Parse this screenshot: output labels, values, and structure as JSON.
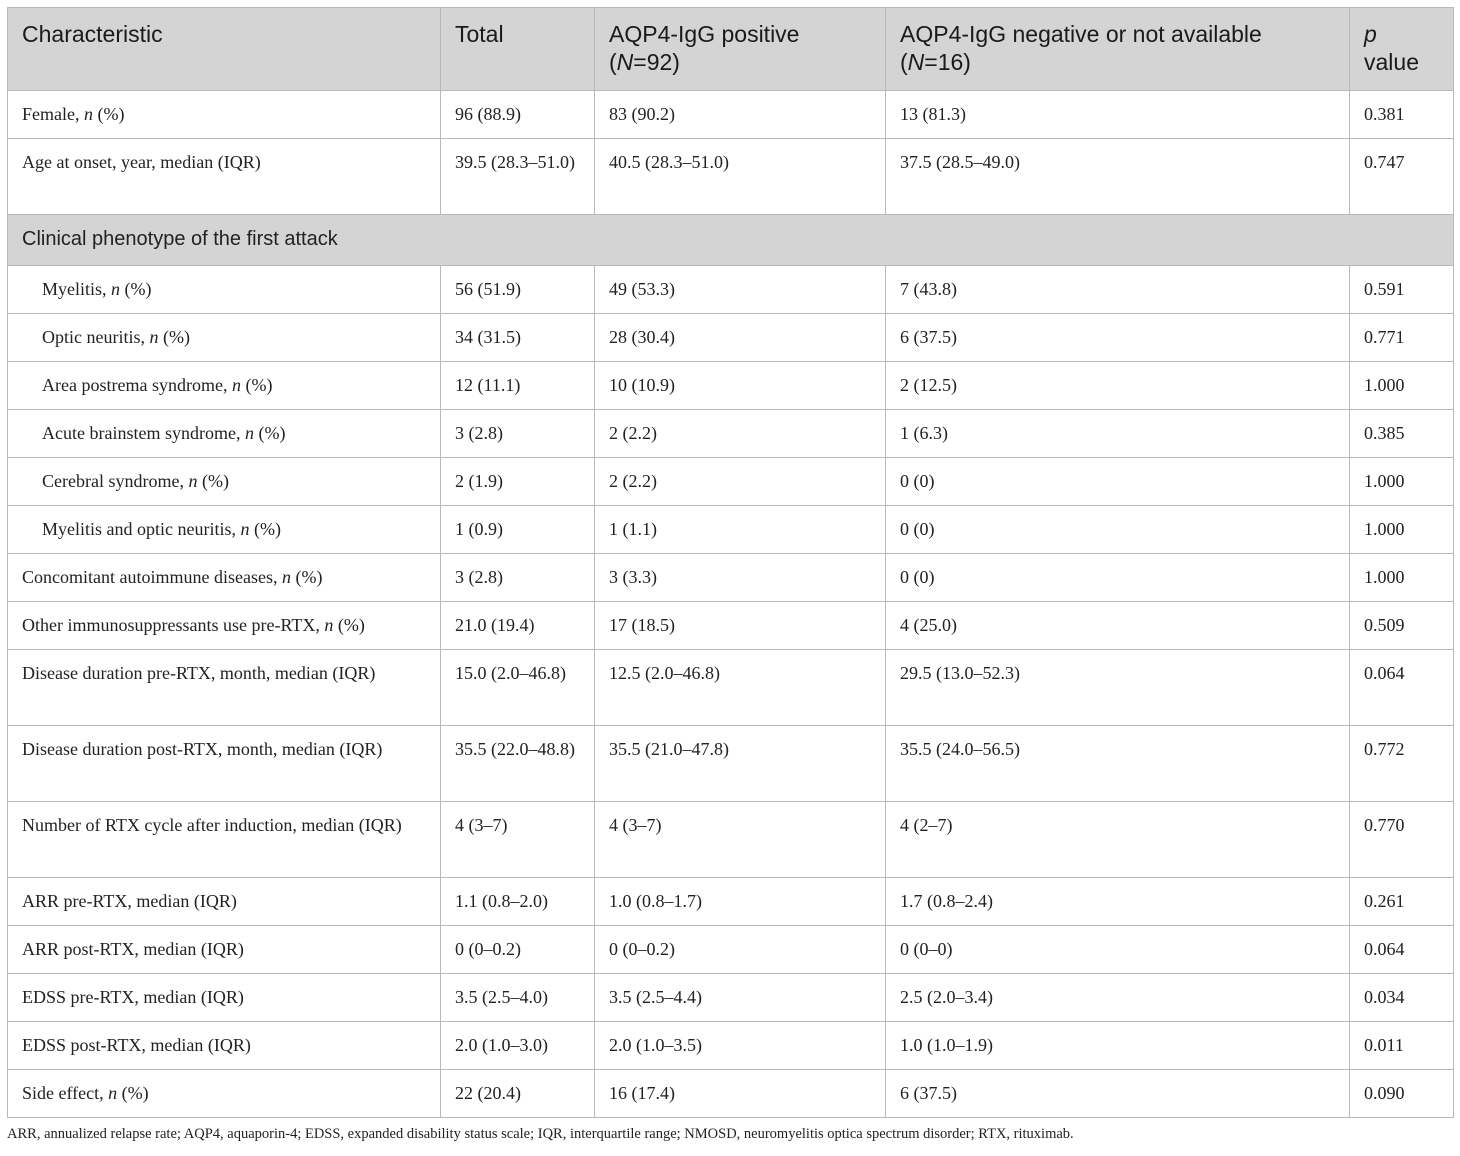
{
  "table": {
    "headers": {
      "characteristic": "Characteristic",
      "total": "Total",
      "pos_line1": "AQP4-IgG positive",
      "pos_n_prefix": "(",
      "pos_n_letter": "N",
      "pos_n_rest": "=92)",
      "neg_line1": "AQP4-IgG negative or not available",
      "neg_n_prefix": "(",
      "neg_n_letter": "N",
      "neg_n_rest": "=16)",
      "p_letter": "p",
      "p_rest": "value"
    },
    "rows": [
      {
        "kind": "data",
        "label_pre": "Female, ",
        "label_em": "n",
        "label_post": " (%)",
        "indent": false,
        "lines": 1,
        "total": "96 (88.9)",
        "positive": "83 (90.2)",
        "negative": "13 (81.3)",
        "p": "0.381"
      },
      {
        "kind": "data",
        "label_pre": "Age at onset, year, median (IQR)",
        "label_em": "",
        "label_post": "",
        "indent": false,
        "lines": 2,
        "total": "39.5 (28.3–51.0)",
        "positive": "40.5 (28.3–51.0)",
        "negative": "37.5 (28.5–49.0)",
        "p": "0.747"
      },
      {
        "kind": "section",
        "label": "Clinical phenotype of the first attack"
      },
      {
        "kind": "data",
        "label_pre": "Myelitis, ",
        "label_em": "n",
        "label_post": " (%)",
        "indent": true,
        "lines": 1,
        "total": "56 (51.9)",
        "positive": "49 (53.3)",
        "negative": "7 (43.8)",
        "p": "0.591"
      },
      {
        "kind": "data",
        "label_pre": "Optic neuritis, ",
        "label_em": "n",
        "label_post": " (%)",
        "indent": true,
        "lines": 1,
        "total": "34 (31.5)",
        "positive": "28 (30.4)",
        "negative": "6 (37.5)",
        "p": "0.771"
      },
      {
        "kind": "data",
        "label_pre": "Area postrema syndrome, ",
        "label_em": "n",
        "label_post": " (%)",
        "indent": true,
        "lines": 1,
        "total": "12 (11.1)",
        "positive": "10 (10.9)",
        "negative": "2 (12.5)",
        "p": "1.000"
      },
      {
        "kind": "data",
        "label_pre": "Acute brainstem syndrome, ",
        "label_em": "n",
        "label_post": " (%)",
        "indent": true,
        "lines": 1,
        "total": "3 (2.8)",
        "positive": "2 (2.2)",
        "negative": "1 (6.3)",
        "p": "0.385"
      },
      {
        "kind": "data",
        "label_pre": "Cerebral syndrome, ",
        "label_em": "n",
        "label_post": " (%)",
        "indent": true,
        "lines": 1,
        "total": "2 (1.9)",
        "positive": "2 (2.2)",
        "negative": "0 (0)",
        "p": "1.000"
      },
      {
        "kind": "data",
        "label_pre": "Myelitis and optic neuritis, ",
        "label_em": "n",
        "label_post": " (%)",
        "indent": true,
        "lines": 1,
        "total": "1 (0.9)",
        "positive": "1 (1.1)",
        "negative": "0 (0)",
        "p": "1.000"
      },
      {
        "kind": "data",
        "label_pre": "Concomitant autoimmune diseases, ",
        "label_em": "n",
        "label_post": " (%)",
        "indent": false,
        "lines": 1,
        "total": "3 (2.8)",
        "positive": "3 (3.3)",
        "negative": "0 (0)",
        "p": "1.000"
      },
      {
        "kind": "data",
        "label_pre": "Other immunosuppressants use pre-RTX, ",
        "label_em": "n",
        "label_post": " (%)",
        "indent": false,
        "lines": 1,
        "total": "21.0 (19.4)",
        "positive": "17 (18.5)",
        "negative": "4 (25.0)",
        "p": "0.509"
      },
      {
        "kind": "data",
        "label_pre": "Disease duration pre-RTX, month, median (IQR)",
        "label_em": "",
        "label_post": "",
        "indent": false,
        "lines": 2,
        "total": "15.0 (2.0–46.8)",
        "positive": "12.5 (2.0–46.8)",
        "negative": "29.5 (13.0–52.3)",
        "p": "0.064"
      },
      {
        "kind": "data",
        "label_pre": "Disease duration post-RTX, month, median (IQR)",
        "label_em": "",
        "label_post": "",
        "indent": false,
        "lines": 2,
        "total": "35.5 (22.0–48.8)",
        "positive": "35.5 (21.0–47.8)",
        "negative": "35.5 (24.0–56.5)",
        "p": "0.772"
      },
      {
        "kind": "data",
        "label_pre": "Number of RTX cycle after induction, median (IQR)",
        "label_em": "",
        "label_post": "",
        "indent": false,
        "lines": 2,
        "total": "4 (3–7)",
        "positive": "4 (3–7)",
        "negative": "4 (2–7)",
        "p": "0.770"
      },
      {
        "kind": "data",
        "label_pre": "ARR pre-RTX, median (IQR)",
        "label_em": "",
        "label_post": "",
        "indent": false,
        "lines": 1,
        "total": "1.1 (0.8–2.0)",
        "positive": "1.0 (0.8–1.7)",
        "negative": "1.7 (0.8–2.4)",
        "p": "0.261"
      },
      {
        "kind": "data",
        "label_pre": "ARR post-RTX, median (IQR)",
        "label_em": "",
        "label_post": "",
        "indent": false,
        "lines": 1,
        "total": "0 (0–0.2)",
        "positive": "0 (0–0.2)",
        "negative": "0 (0–0)",
        "p": "0.064"
      },
      {
        "kind": "data",
        "label_pre": "EDSS pre-RTX, median (IQR)",
        "label_em": "",
        "label_post": "",
        "indent": false,
        "lines": 1,
        "total": "3.5 (2.5–4.0)",
        "positive": "3.5 (2.5–4.4)",
        "negative": "2.5 (2.0–3.4)",
        "p": "0.034"
      },
      {
        "kind": "data",
        "label_pre": "EDSS post-RTX, median (IQR)",
        "label_em": "",
        "label_post": "",
        "indent": false,
        "lines": 1,
        "total": "2.0 (1.0–3.0)",
        "positive": "2.0 (1.0–3.5)",
        "negative": "1.0 (1.0–1.9)",
        "p": "0.011"
      },
      {
        "kind": "data",
        "label_pre": "Side effect, ",
        "label_em": "n",
        "label_post": " (%)",
        "indent": false,
        "lines": 1,
        "total": "22 (20.4)",
        "positive": "16 (17.4)",
        "negative": "6 (37.5)",
        "p": "0.090"
      }
    ]
  },
  "footnote": "ARR, annualized relapse rate; AQP4, aquaporin-4; EDSS, expanded disability status scale; IQR, interquartile range; NMOSD, neuromyelitis optica spectrum disorder; RTX, rituximab."
}
